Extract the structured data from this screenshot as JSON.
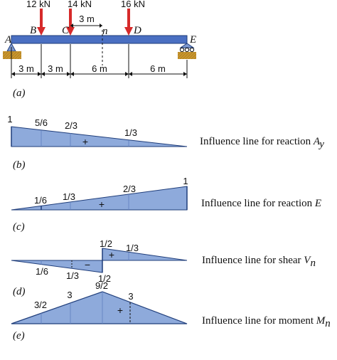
{
  "colors": {
    "beam_fill": "#4a6fc2",
    "beam_stroke": "#1f3d7a",
    "load_arrow": "#d62a2a",
    "diagram_fill": "#8eaadb",
    "diagram_stroke": "#1f3d7a",
    "support": "#c8962e"
  },
  "beam": {
    "points": {
      "A": "A",
      "B": "B",
      "C": "C",
      "n": "n",
      "D": "D",
      "E": "E"
    },
    "loads": [
      "12 kN",
      "14 kN",
      "16 kN"
    ],
    "spans": [
      "3 m",
      "3 m",
      "6 m",
      "6 m"
    ],
    "cn_distance": "3 m",
    "caption": "(a)"
  },
  "panels": [
    {
      "caption": "(b)",
      "description_text": "Influence line for reaction ",
      "description_symbol": "A",
      "description_sub": "y",
      "values": [
        "1",
        "5/6",
        "2/3",
        "1/3"
      ],
      "sign": "+"
    },
    {
      "caption": "(c)",
      "description_text": "Influence line for reaction ",
      "description_symbol": "E",
      "values": [
        "1/6",
        "1/3",
        "2/3",
        "1"
      ],
      "sign": "+"
    },
    {
      "caption": "(d)",
      "description_text": "Influence line for shear ",
      "description_symbol": "V",
      "description_sub": "n",
      "values": [
        "1/2",
        "1/3",
        "1/6",
        "1/3",
        "1/2"
      ],
      "signs": [
        "+",
        "−"
      ]
    },
    {
      "caption": "(e)",
      "description_text": "Influence line for moment ",
      "description_symbol": "M",
      "description_sub": "n",
      "values": [
        "3/2",
        "3",
        "9/2",
        "3"
      ],
      "sign": "+"
    }
  ]
}
